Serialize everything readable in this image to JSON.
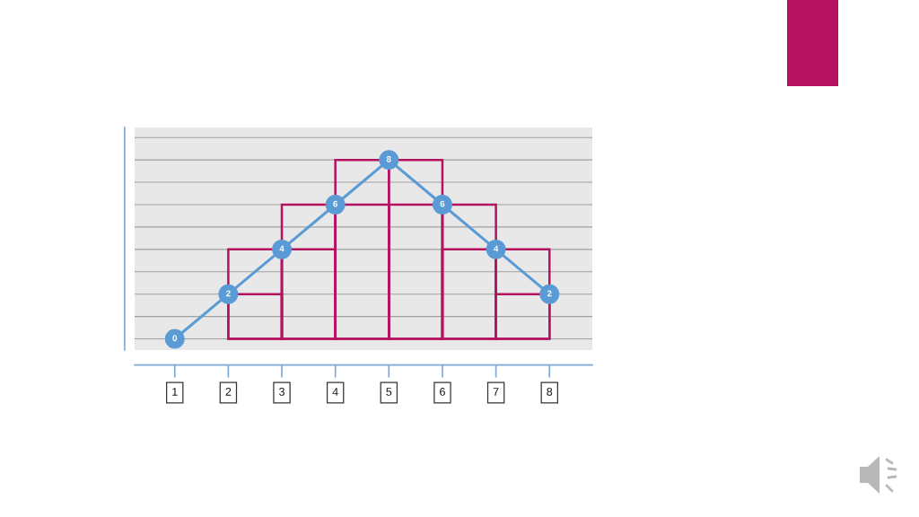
{
  "chart_data": {
    "type": "line",
    "x": [
      1,
      2,
      3,
      4,
      5,
      6,
      7,
      8
    ],
    "xlim": [
      0.25,
      8.8
    ],
    "xticks": [
      1,
      2,
      3,
      4,
      5,
      6,
      7,
      8
    ],
    "ylim": [
      -0.5,
      9.45
    ],
    "yticks": [
      {
        "value": 0,
        "label": null
      },
      {
        "value": 1,
        "label": null
      },
      {
        "value": 2,
        "label": null
      },
      {
        "value": 3,
        "label": null
      },
      {
        "value": 4,
        "label": null
      },
      {
        "value": 5,
        "label": null
      },
      {
        "value": 6,
        "label": null
      },
      {
        "value": 7,
        "label": null
      },
      {
        "value": 8,
        "label": null
      },
      {
        "value": 9,
        "label": null
      }
    ],
    "grid": "y",
    "tick_labels": "x",
    "marker": "circle",
    "series": [
      {
        "type": "bar",
        "x": [
          2.5,
          3.5,
          4.5,
          5.5,
          6.5,
          7.5
        ],
        "values": [
          4,
          6,
          8,
          8,
          6,
          4
        ],
        "color": "#b5135f"
      },
      {
        "type": "bar",
        "x": [
          2.5,
          3.5,
          4.5,
          5.5,
          6.5,
          7.5
        ],
        "values": [
          2,
          4,
          6,
          6,
          4,
          2
        ],
        "color": "#b5135f"
      },
      {
        "color": "#5b9bd5",
        "values": [
          0,
          2,
          4,
          6,
          8,
          6,
          4,
          2
        ],
        "data_labels": true
      }
    ]
  }
}
